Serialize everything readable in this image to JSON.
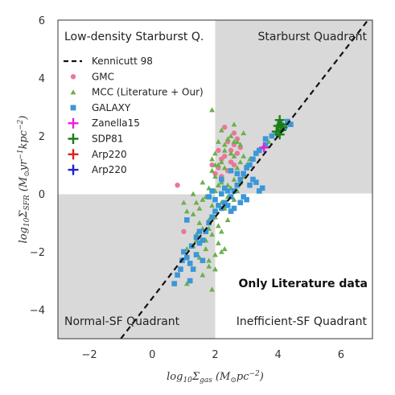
{
  "chart_data": {
    "type": "scatter",
    "xlabel": "log10 Σgas (M⊙ pc^-2)",
    "ylabel": "log10 ΣSFR (M⊙ yr^-1 kpc^-2)",
    "xlim": [
      -3,
      7
    ],
    "ylim": [
      -5,
      6
    ],
    "x_ticks": [
      -2,
      0,
      2,
      4,
      6
    ],
    "y_ticks": [
      -4,
      -2,
      0,
      2,
      4,
      6
    ],
    "x_tick_labels": [
      "−2",
      "0",
      "2",
      "4",
      "6"
    ],
    "y_tick_labels": [
      "−4",
      "−2",
      "0",
      "2",
      "4",
      "6"
    ],
    "quadrant_divider": {
      "x": 2,
      "y": 0
    },
    "shaded_quadrants": [
      "top-right",
      "bottom-left"
    ],
    "quadrant_labels": {
      "top_left": "Low-density Starburst Q.",
      "top_right": "Starburst Quadrant",
      "bottom_left": "Normal-SF Quadrant",
      "bottom_right": "Inefficient-SF Quadrant"
    },
    "annotation": "Only Literature data",
    "legend_position": "upper-left",
    "colors": {
      "shade": "#d9d9d9",
      "gmc": "#e8789a",
      "mcc": "#6ab04c",
      "galaxy": "#3a97d8",
      "zanella": "#e81ee0",
      "sdp81": "#1a7d1a",
      "arp220_red": "#e01e1e",
      "arp220_blue": "#1e22c8"
    },
    "kennicutt_line": {
      "name": "Kennicutt 98",
      "slope": 1.4,
      "intercept": -3.6
    },
    "series": [
      {
        "name": "GMC",
        "marker": "circle",
        "points": [
          [
            1.0,
            -1.3
          ],
          [
            0.8,
            0.3
          ],
          [
            1.9,
            1.0
          ],
          [
            2.0,
            0.7
          ],
          [
            2.1,
            0.9
          ],
          [
            2.2,
            1.2
          ],
          [
            2.3,
            2.3
          ],
          [
            2.4,
            1.8
          ],
          [
            2.5,
            1.5
          ],
          [
            2.5,
            1.1
          ],
          [
            2.6,
            1.7
          ],
          [
            2.7,
            1.4
          ],
          [
            2.7,
            1.9
          ],
          [
            2.8,
            1.6
          ],
          [
            2.6,
            2.1
          ],
          [
            2.3,
            1.3
          ],
          [
            2.2,
            0.6
          ],
          [
            2.4,
            0.8
          ],
          [
            2.6,
            1.0
          ],
          [
            2.1,
            1.5
          ]
        ]
      },
      {
        "name": "MCC (Literature + Our)",
        "marker": "triangle",
        "points": [
          [
            1.9,
            2.9
          ],
          [
            1.1,
            -3.1
          ],
          [
            1.9,
            -3.3
          ],
          [
            1.2,
            -2.4
          ],
          [
            1.5,
            -2.2
          ],
          [
            1.7,
            -1.9
          ],
          [
            1.8,
            -2.3
          ],
          [
            1.4,
            -1.6
          ],
          [
            1.6,
            -1.2
          ],
          [
            1.3,
            -0.7
          ],
          [
            1.0,
            -0.3
          ],
          [
            1.1,
            -0.6
          ],
          [
            1.5,
            -0.5
          ],
          [
            1.8,
            -0.9
          ],
          [
            1.9,
            -0.4
          ],
          [
            2.0,
            -0.8
          ],
          [
            2.1,
            -1.1
          ],
          [
            2.2,
            -0.3
          ],
          [
            2.3,
            -0.5
          ],
          [
            2.4,
            -0.1
          ],
          [
            2.5,
            0.2
          ],
          [
            2.6,
            0.5
          ],
          [
            2.7,
            0.9
          ],
          [
            2.8,
            1.1
          ],
          [
            2.9,
            1.3
          ],
          [
            2.2,
            0.4
          ],
          [
            2.0,
            0.6
          ],
          [
            2.1,
            1.0
          ],
          [
            2.3,
            1.5
          ],
          [
            2.4,
            1.9
          ],
          [
            2.6,
            2.4
          ],
          [
            2.5,
            2.0
          ],
          [
            2.2,
            2.2
          ],
          [
            2.1,
            1.8
          ],
          [
            2.0,
            1.4
          ],
          [
            1.9,
            1.2
          ],
          [
            2.3,
            0.9
          ],
          [
            2.4,
            0.3
          ],
          [
            2.6,
            1.3
          ],
          [
            2.8,
            1.7
          ],
          [
            2.9,
            2.1
          ],
          [
            2.7,
            1.8
          ],
          [
            2.0,
            0.1
          ],
          [
            1.8,
            0.2
          ],
          [
            1.7,
            -0.1
          ],
          [
            1.6,
            -0.2
          ],
          [
            1.5,
            -1.0
          ],
          [
            1.4,
            -1.4
          ],
          [
            1.3,
            -1.8
          ],
          [
            1.7,
            -1.6
          ],
          [
            1.9,
            -1.4
          ],
          [
            2.1,
            -1.7
          ],
          [
            2.2,
            -1.3
          ],
          [
            2.3,
            -1.9
          ],
          [
            2.0,
            -2.1
          ],
          [
            1.8,
            -1.2
          ],
          [
            2.5,
            -0.6
          ],
          [
            2.6,
            -0.2
          ],
          [
            2.7,
            0.1
          ],
          [
            2.4,
            -0.9
          ],
          [
            2.1,
            0.3
          ],
          [
            2.2,
            1.1
          ],
          [
            2.3,
            1.7
          ],
          [
            2.5,
            1.4
          ],
          [
            2.6,
            1.8
          ],
          [
            1.9,
            0.8
          ],
          [
            2.0,
            1.0
          ],
          [
            1.6,
            0.4
          ],
          [
            1.3,
            0.0
          ],
          [
            1.4,
            -0.3
          ],
          [
            2.9,
            0.6
          ],
          [
            3.0,
            1.0
          ],
          [
            3.1,
            1.2
          ],
          [
            2.8,
            0.4
          ],
          [
            3.7,
            1.8
          ],
          [
            3.5,
            1.6
          ],
          [
            3.9,
            2.1
          ],
          [
            4.0,
            2.2
          ],
          [
            4.1,
            2.3
          ],
          [
            2.0,
            -2.6
          ],
          [
            1.8,
            -2.5
          ],
          [
            2.2,
            -2.0
          ],
          [
            1.6,
            -2.8
          ],
          [
            1.1,
            -1.9
          ]
        ]
      },
      {
        "name": "GALAXY",
        "marker": "square",
        "points": [
          [
            0.7,
            -3.1
          ],
          [
            0.8,
            -2.8
          ],
          [
            0.9,
            -2.6
          ],
          [
            0.95,
            -2.3
          ],
          [
            1.0,
            -2.0
          ],
          [
            1.1,
            -2.2
          ],
          [
            1.2,
            -2.4
          ],
          [
            1.25,
            -1.8
          ],
          [
            1.4,
            -2.1
          ],
          [
            1.5,
            -1.7
          ],
          [
            1.6,
            -1.6
          ],
          [
            1.7,
            -1.3
          ],
          [
            1.8,
            -1.0
          ],
          [
            1.9,
            -0.8
          ],
          [
            2.0,
            -0.6
          ],
          [
            2.1,
            -0.4
          ],
          [
            2.2,
            -0.5
          ],
          [
            2.3,
            -0.3
          ],
          [
            2.4,
            -0.4
          ],
          [
            2.5,
            -0.1
          ],
          [
            2.6,
            0.1
          ],
          [
            2.7,
            0.3
          ],
          [
            2.8,
            0.5
          ],
          [
            2.9,
            0.7
          ],
          [
            3.0,
            0.9
          ],
          [
            3.1,
            1.0
          ],
          [
            3.2,
            1.2
          ],
          [
            3.3,
            1.4
          ],
          [
            3.4,
            1.5
          ],
          [
            3.6,
            1.7
          ],
          [
            3.8,
            2.0
          ],
          [
            4.0,
            2.1
          ],
          [
            4.2,
            2.3
          ],
          [
            4.4,
            2.4
          ],
          [
            1.9,
            0.1
          ],
          [
            2.0,
            -0.2
          ],
          [
            1.8,
            -0.1
          ],
          [
            2.2,
            0.0
          ],
          [
            2.3,
            0.2
          ],
          [
            2.4,
            0.1
          ],
          [
            3.1,
            0.3
          ],
          [
            3.2,
            0.5
          ],
          [
            3.3,
            0.4
          ],
          [
            3.4,
            0.1
          ],
          [
            3.5,
            0.2
          ],
          [
            2.8,
            -0.3
          ],
          [
            2.9,
            -0.1
          ],
          [
            3.0,
            -0.2
          ],
          [
            2.6,
            -0.5
          ],
          [
            2.5,
            -0.6
          ],
          [
            1.6,
            -2.3
          ],
          [
            1.4,
            -1.5
          ],
          [
            1.3,
            -2.6
          ],
          [
            1.2,
            -3.0
          ],
          [
            1.5,
            -1.3
          ],
          [
            1.1,
            -0.9
          ],
          [
            2.7,
            0.7
          ],
          [
            3.6,
            1.9
          ],
          [
            4.3,
            2.5
          ],
          [
            2.5,
            0.8
          ],
          [
            2.2,
            0.5
          ]
        ]
      },
      {
        "name": "Zanella15",
        "marker": "plus",
        "points": [
          [
            3.55,
            1.6
          ]
        ]
      },
      {
        "name": "SDP81",
        "marker": "plus",
        "points": [
          [
            4.05,
            2.55
          ],
          [
            4.0,
            2.35
          ],
          [
            4.1,
            2.2
          ],
          [
            3.95,
            2.15
          ],
          [
            4.05,
            2.05
          ],
          [
            4.15,
            2.3
          ],
          [
            4.1,
            2.4
          ]
        ]
      },
      {
        "name": "Arp220",
        "marker": "plus",
        "points": []
      },
      {
        "name": "Arp220",
        "marker": "plus",
        "points": []
      }
    ]
  }
}
